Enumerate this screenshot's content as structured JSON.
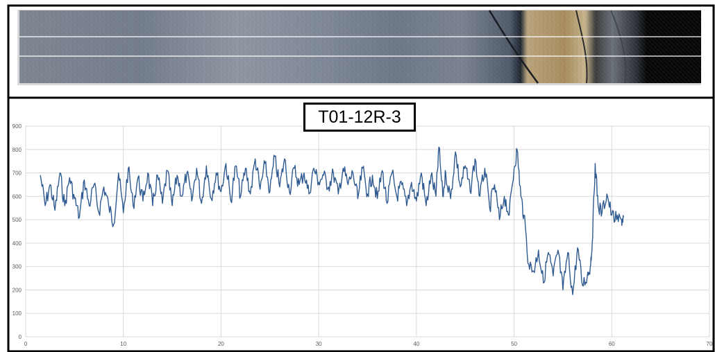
{
  "colors": {
    "series": "#2e5a91",
    "grid": "#d9d9d9",
    "axis_text": "#595959",
    "frame": "#000000",
    "core_dark": "#070708"
  },
  "core_image": {
    "description": "core-scan-strip"
  },
  "chart_data": {
    "type": "line",
    "title": "T01-12R-3",
    "xlabel": "",
    "ylabel": "",
    "xlim": [
      0,
      70
    ],
    "ylim": [
      0,
      900
    ],
    "x_ticks": [
      0,
      10,
      20,
      30,
      40,
      50,
      60,
      70
    ],
    "y_ticks": [
      0,
      100,
      200,
      300,
      400,
      500,
      600,
      700,
      800,
      900
    ],
    "x_tick_labels": [
      "0",
      "10",
      "20",
      "30",
      "40",
      "50",
      "60",
      "70"
    ],
    "y_tick_labels": [
      "0",
      "100",
      "200",
      "300",
      "400",
      "500",
      "600",
      "700",
      "800",
      "900"
    ],
    "grid": true,
    "legend": "none",
    "series": [
      {
        "values_x": [
          1.5,
          2,
          2.5,
          3,
          3.5,
          4,
          4.5,
          5,
          5.5,
          6,
          6.5,
          7,
          7.5,
          8,
          8.5,
          9,
          9.5,
          10,
          10.5,
          11,
          11.5,
          12,
          12.5,
          13,
          13.5,
          14,
          14.5,
          15,
          15.5,
          16,
          16.5,
          17,
          17.5,
          18,
          18.5,
          19,
          19.5,
          20,
          20.5,
          21,
          21.5,
          22,
          22.5,
          23,
          23.5,
          24,
          24.5,
          25,
          25.5,
          26,
          26.5,
          27,
          27.5,
          28,
          28.5,
          29,
          29.5,
          30,
          30.5,
          31,
          31.5,
          32,
          32.5,
          33,
          33.5,
          34,
          34.5,
          35,
          35.5,
          36,
          36.5,
          37,
          37.5,
          38,
          38.5,
          39,
          39.5,
          40,
          40.5,
          41,
          41.5,
          42,
          42.3,
          42.7,
          43,
          43.5,
          44,
          44.5,
          45,
          45.5,
          46,
          46.5,
          47,
          47.5,
          48,
          48.5,
          49,
          49.5,
          50,
          50.3,
          50.7,
          51,
          51.5,
          52,
          52.5,
          53,
          53.5,
          54,
          54.5,
          55,
          55.5,
          56,
          56.5,
          57,
          57.5,
          57.8,
          58,
          58.3,
          58.6,
          59,
          59.5,
          60,
          60.5,
          61,
          61.2
        ],
        "values_y": [
          690,
          560,
          650,
          540,
          700,
          560,
          680,
          590,
          510,
          670,
          560,
          650,
          530,
          640,
          560,
          480,
          700,
          530,
          720,
          560,
          680,
          580,
          700,
          560,
          690,
          570,
          710,
          560,
          690,
          600,
          700,
          580,
          720,
          570,
          730,
          590,
          700,
          620,
          740,
          580,
          730,
          600,
          720,
          610,
          760,
          630,
          740,
          620,
          770,
          640,
          760,
          620,
          720,
          650,
          700,
          610,
          720,
          660,
          690,
          640,
          700,
          610,
          720,
          650,
          700,
          590,
          720,
          610,
          690,
          590,
          710,
          570,
          700,
          600,
          650,
          560,
          660,
          580,
          700,
          560,
          690,
          600,
          810,
          600,
          700,
          590,
          790,
          640,
          730,
          620,
          760,
          600,
          720,
          550,
          650,
          500,
          600,
          520,
          720,
          800,
          600,
          520,
          310,
          280,
          370,
          230,
          360,
          260,
          370,
          200,
          360,
          180,
          380,
          220,
          260,
          300,
          400,
          740,
          560,
          530,
          610,
          520,
          500,
          500,
          510
        ]
      }
    ]
  }
}
